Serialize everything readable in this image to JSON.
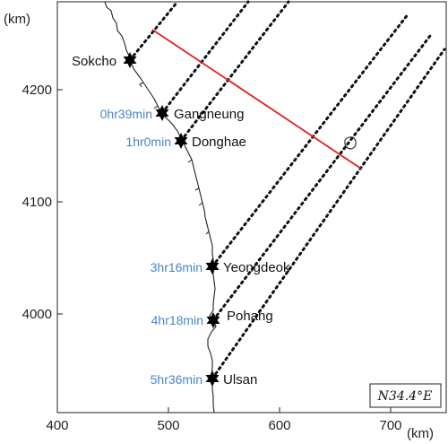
{
  "units": {
    "x": "(km)",
    "y": "(km)"
  },
  "axes": {
    "x_ticks": [
      "400",
      "500",
      "600",
      "700"
    ],
    "y_ticks": [
      "4000",
      "4100",
      "4200"
    ]
  },
  "bearing_label": "N34.4°E",
  "stations": [
    {
      "name": "Sokcho",
      "time": "",
      "x": 467,
      "y": 4228
    },
    {
      "name": "Gangneung",
      "time": "0hr39min",
      "x": 496,
      "y": 4180
    },
    {
      "name": "Donghae",
      "time": "1hr0min",
      "x": 511,
      "y": 4156
    },
    {
      "name": "Yeongdeok",
      "time": "3hr16min",
      "x": 539,
      "y": 4041
    },
    {
      "name": "Pohang",
      "time": "4hr18min",
      "x": 540,
      "y": 3994
    },
    {
      "name": "Ulsan",
      "time": "5hr36min",
      "x": 539,
      "y": 3942
    }
  ],
  "colors": {
    "section_line": "#e02020",
    "time_label": "#4a86c8",
    "coastline": "#222222"
  }
}
